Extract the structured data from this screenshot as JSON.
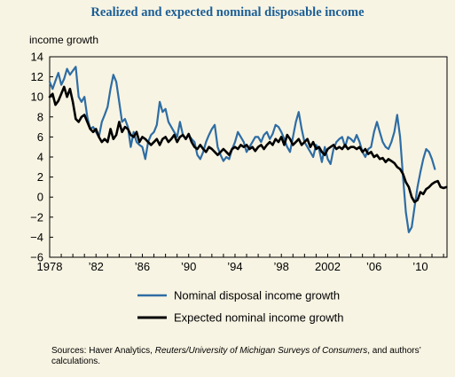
{
  "chart_data": {
    "type": "line",
    "title": "Realized and expected nominal disposable income",
    "ylabel": "income growth",
    "xlabel": "",
    "ylim": [
      -6,
      14
    ],
    "yticks": [
      -6,
      -4,
      -2,
      0,
      2,
      4,
      6,
      8,
      10,
      12,
      14
    ],
    "ytick_labels": [
      "−6",
      "−4",
      "−2",
      "0",
      "2",
      "4",
      "6",
      "8",
      "10",
      "12",
      "14"
    ],
    "xlim": [
      1978,
      2012.3
    ],
    "xticks": [
      1978,
      1982,
      1986,
      1990,
      1994,
      1998,
      2002,
      2006,
      2010
    ],
    "xtick_labels": [
      "1978",
      "’82",
      "’86",
      "’90",
      "’94",
      "’98",
      "2002",
      "’06",
      "’10"
    ],
    "grid": false,
    "legend_position": "bottom",
    "series": [
      {
        "name": "Nominal disposal income growth",
        "color": "#2e6da4",
        "points": [
          [
            1978.0,
            11.5
          ],
          [
            1978.25,
            10.8
          ],
          [
            1978.5,
            11.6
          ],
          [
            1978.75,
            12.4
          ],
          [
            1979.0,
            11.2
          ],
          [
            1979.25,
            11.8
          ],
          [
            1979.5,
            12.8
          ],
          [
            1979.75,
            12.2
          ],
          [
            1980.0,
            12.6
          ],
          [
            1980.25,
            13.0
          ],
          [
            1980.5,
            10.0
          ],
          [
            1980.75,
            9.5
          ],
          [
            1981.0,
            10.0
          ],
          [
            1981.25,
            8.0
          ],
          [
            1981.5,
            6.8
          ],
          [
            1981.75,
            7.0
          ],
          [
            1982.0,
            6.5
          ],
          [
            1982.25,
            6.0
          ],
          [
            1982.5,
            7.5
          ],
          [
            1982.75,
            8.2
          ],
          [
            1983.0,
            9.0
          ],
          [
            1983.25,
            10.8
          ],
          [
            1983.5,
            12.2
          ],
          [
            1983.75,
            11.5
          ],
          [
            1984.0,
            9.5
          ],
          [
            1984.25,
            7.5
          ],
          [
            1984.5,
            7.8
          ],
          [
            1984.75,
            7.0
          ],
          [
            1985.0,
            5.0
          ],
          [
            1985.25,
            6.5
          ],
          [
            1985.5,
            5.5
          ],
          [
            1985.75,
            5.2
          ],
          [
            1986.0,
            5.0
          ],
          [
            1986.25,
            3.8
          ],
          [
            1986.5,
            5.5
          ],
          [
            1986.75,
            6.2
          ],
          [
            1987.0,
            6.5
          ],
          [
            1987.25,
            7.2
          ],
          [
            1987.5,
            9.5
          ],
          [
            1987.75,
            8.5
          ],
          [
            1988.0,
            8.8
          ],
          [
            1988.25,
            7.5
          ],
          [
            1988.5,
            7.0
          ],
          [
            1988.75,
            6.5
          ],
          [
            1989.0,
            6.0
          ],
          [
            1989.25,
            7.5
          ],
          [
            1989.5,
            6.2
          ],
          [
            1989.75,
            5.8
          ],
          [
            1990.0,
            6.2
          ],
          [
            1990.25,
            5.8
          ],
          [
            1990.5,
            5.5
          ],
          [
            1990.75,
            4.2
          ],
          [
            1991.0,
            3.8
          ],
          [
            1991.25,
            4.5
          ],
          [
            1991.5,
            5.5
          ],
          [
            1991.75,
            6.2
          ],
          [
            1992.0,
            6.8
          ],
          [
            1992.25,
            7.2
          ],
          [
            1992.5,
            5.0
          ],
          [
            1992.75,
            4.2
          ],
          [
            1993.0,
            3.6
          ],
          [
            1993.25,
            4.0
          ],
          [
            1993.5,
            3.8
          ],
          [
            1993.75,
            4.8
          ],
          [
            1994.0,
            5.5
          ],
          [
            1994.25,
            6.5
          ],
          [
            1994.5,
            6.0
          ],
          [
            1994.75,
            5.5
          ],
          [
            1995.0,
            4.5
          ],
          [
            1995.25,
            5.0
          ],
          [
            1995.5,
            5.5
          ],
          [
            1995.75,
            6.0
          ],
          [
            1996.0,
            6.0
          ],
          [
            1996.25,
            5.5
          ],
          [
            1996.5,
            6.2
          ],
          [
            1996.75,
            6.5
          ],
          [
            1997.0,
            5.8
          ],
          [
            1997.25,
            6.3
          ],
          [
            1997.5,
            7.2
          ],
          [
            1997.75,
            7.0
          ],
          [
            1998.0,
            6.5
          ],
          [
            1998.25,
            5.8
          ],
          [
            1998.5,
            5.0
          ],
          [
            1998.75,
            4.5
          ],
          [
            1999.0,
            6.0
          ],
          [
            1999.25,
            7.5
          ],
          [
            1999.5,
            8.5
          ],
          [
            1999.75,
            6.8
          ],
          [
            2000.0,
            5.5
          ],
          [
            2000.25,
            5.0
          ],
          [
            2000.5,
            4.5
          ],
          [
            2000.75,
            4.0
          ],
          [
            2001.0,
            5.2
          ],
          [
            2001.25,
            4.8
          ],
          [
            2001.5,
            3.5
          ],
          [
            2001.75,
            5.0
          ],
          [
            2002.0,
            3.8
          ],
          [
            2002.25,
            3.3
          ],
          [
            2002.5,
            4.8
          ],
          [
            2002.75,
            5.5
          ],
          [
            2003.0,
            5.8
          ],
          [
            2003.25,
            6.0
          ],
          [
            2003.5,
            5.0
          ],
          [
            2003.75,
            6.0
          ],
          [
            2004.0,
            5.8
          ],
          [
            2004.25,
            5.5
          ],
          [
            2004.5,
            6.2
          ],
          [
            2004.75,
            5.5
          ],
          [
            2005.0,
            4.5
          ],
          [
            2005.25,
            4.0
          ],
          [
            2005.5,
            4.8
          ],
          [
            2005.75,
            5.0
          ],
          [
            2006.0,
            6.5
          ],
          [
            2006.25,
            7.5
          ],
          [
            2006.5,
            6.5
          ],
          [
            2006.75,
            5.5
          ],
          [
            2007.0,
            5.0
          ],
          [
            2007.25,
            4.8
          ],
          [
            2007.5,
            5.5
          ],
          [
            2007.75,
            6.5
          ],
          [
            2008.0,
            8.2
          ],
          [
            2008.25,
            6.0
          ],
          [
            2008.5,
            2.0
          ],
          [
            2008.75,
            -1.5
          ],
          [
            2009.0,
            -3.5
          ],
          [
            2009.25,
            -3.0
          ],
          [
            2009.5,
            -1.0
          ],
          [
            2009.75,
            1.0
          ],
          [
            2010.0,
            2.5
          ],
          [
            2010.25,
            3.8
          ],
          [
            2010.5,
            4.8
          ],
          [
            2010.75,
            4.5
          ],
          [
            2011.0,
            3.8
          ],
          [
            2011.25,
            2.8
          ]
        ]
      },
      {
        "name": "Expected nominal income growth",
        "color": "#000000",
        "points": [
          [
            1978.0,
            10.0
          ],
          [
            1978.25,
            10.3
          ],
          [
            1978.5,
            9.2
          ],
          [
            1978.75,
            9.6
          ],
          [
            1979.0,
            10.3
          ],
          [
            1979.25,
            11.0
          ],
          [
            1979.5,
            10.0
          ],
          [
            1979.75,
            10.8
          ],
          [
            1980.0,
            9.5
          ],
          [
            1980.25,
            7.8
          ],
          [
            1980.5,
            7.5
          ],
          [
            1980.75,
            8.0
          ],
          [
            1981.0,
            8.2
          ],
          [
            1981.25,
            7.5
          ],
          [
            1981.5,
            6.8
          ],
          [
            1981.75,
            6.5
          ],
          [
            1982.0,
            6.8
          ],
          [
            1982.25,
            6.0
          ],
          [
            1982.5,
            5.5
          ],
          [
            1982.75,
            5.8
          ],
          [
            1983.0,
            5.5
          ],
          [
            1983.25,
            6.8
          ],
          [
            1983.5,
            5.8
          ],
          [
            1983.75,
            6.2
          ],
          [
            1984.0,
            7.5
          ],
          [
            1984.25,
            6.5
          ],
          [
            1984.5,
            7.0
          ],
          [
            1984.75,
            6.8
          ],
          [
            1985.0,
            6.2
          ],
          [
            1985.25,
            6.0
          ],
          [
            1985.5,
            6.5
          ],
          [
            1985.75,
            5.5
          ],
          [
            1986.0,
            6.0
          ],
          [
            1986.25,
            5.8
          ],
          [
            1986.5,
            5.5
          ],
          [
            1986.75,
            5.2
          ],
          [
            1987.0,
            5.5
          ],
          [
            1987.25,
            5.8
          ],
          [
            1987.5,
            5.2
          ],
          [
            1987.75,
            5.8
          ],
          [
            1988.0,
            6.0
          ],
          [
            1988.25,
            5.5
          ],
          [
            1988.5,
            5.8
          ],
          [
            1988.75,
            6.2
          ],
          [
            1989.0,
            5.5
          ],
          [
            1989.25,
            6.0
          ],
          [
            1989.5,
            6.2
          ],
          [
            1989.75,
            5.8
          ],
          [
            1990.0,
            6.3
          ],
          [
            1990.25,
            5.5
          ],
          [
            1990.5,
            5.0
          ],
          [
            1990.75,
            4.8
          ],
          [
            1991.0,
            5.2
          ],
          [
            1991.25,
            4.8
          ],
          [
            1991.5,
            4.5
          ],
          [
            1991.75,
            5.0
          ],
          [
            1992.0,
            4.8
          ],
          [
            1992.25,
            4.5
          ],
          [
            1992.5,
            4.2
          ],
          [
            1992.75,
            4.5
          ],
          [
            1993.0,
            4.8
          ],
          [
            1993.25,
            4.5
          ],
          [
            1993.5,
            4.2
          ],
          [
            1993.75,
            4.8
          ],
          [
            1994.0,
            5.0
          ],
          [
            1994.25,
            4.8
          ],
          [
            1994.5,
            5.2
          ],
          [
            1994.75,
            5.0
          ],
          [
            1995.0,
            5.2
          ],
          [
            1995.25,
            4.8
          ],
          [
            1995.5,
            5.0
          ],
          [
            1995.75,
            4.6
          ],
          [
            1996.0,
            5.0
          ],
          [
            1996.25,
            5.2
          ],
          [
            1996.5,
            4.8
          ],
          [
            1996.75,
            5.2
          ],
          [
            1997.0,
            5.5
          ],
          [
            1997.25,
            5.2
          ],
          [
            1997.5,
            5.8
          ],
          [
            1997.75,
            5.5
          ],
          [
            1998.0,
            6.0
          ],
          [
            1998.25,
            5.2
          ],
          [
            1998.5,
            6.2
          ],
          [
            1998.75,
            5.8
          ],
          [
            1999.0,
            5.2
          ],
          [
            1999.25,
            5.5
          ],
          [
            1999.5,
            5.8
          ],
          [
            1999.75,
            5.2
          ],
          [
            2000.0,
            5.5
          ],
          [
            2000.25,
            5.8
          ],
          [
            2000.5,
            5.0
          ],
          [
            2000.75,
            5.5
          ],
          [
            2001.0,
            4.8
          ],
          [
            2001.25,
            5.0
          ],
          [
            2001.5,
            4.5
          ],
          [
            2001.75,
            4.2
          ],
          [
            2002.0,
            4.8
          ],
          [
            2002.25,
            5.0
          ],
          [
            2002.5,
            5.2
          ],
          [
            2002.75,
            4.8
          ],
          [
            2003.0,
            5.0
          ],
          [
            2003.25,
            4.8
          ],
          [
            2003.5,
            5.2
          ],
          [
            2003.75,
            4.8
          ],
          [
            2004.0,
            5.0
          ],
          [
            2004.25,
            5.0
          ],
          [
            2004.5,
            4.8
          ],
          [
            2004.75,
            5.0
          ],
          [
            2005.0,
            4.5
          ],
          [
            2005.25,
            4.8
          ],
          [
            2005.5,
            4.3
          ],
          [
            2005.75,
            4.5
          ],
          [
            2006.0,
            4.0
          ],
          [
            2006.25,
            4.2
          ],
          [
            2006.5,
            3.8
          ],
          [
            2006.75,
            3.9
          ],
          [
            2007.0,
            3.5
          ],
          [
            2007.25,
            3.8
          ],
          [
            2007.5,
            3.6
          ],
          [
            2007.75,
            3.4
          ],
          [
            2008.0,
            3.0
          ],
          [
            2008.25,
            2.8
          ],
          [
            2008.5,
            2.3
          ],
          [
            2008.75,
            1.5
          ],
          [
            2009.0,
            1.0
          ],
          [
            2009.25,
            0.0
          ],
          [
            2009.5,
            -0.5
          ],
          [
            2009.75,
            -0.3
          ],
          [
            2010.0,
            0.5
          ],
          [
            2010.25,
            0.3
          ],
          [
            2010.5,
            0.8
          ],
          [
            2010.75,
            1.0
          ],
          [
            2011.0,
            1.3
          ],
          [
            2011.25,
            1.5
          ],
          [
            2011.5,
            1.6
          ],
          [
            2011.75,
            1.0
          ],
          [
            2012.0,
            0.9
          ],
          [
            2012.25,
            1.0
          ]
        ]
      }
    ]
  },
  "source": {
    "prefix": "Sources: Haver Analytics, ",
    "italic": "Reuters/University of Michigan Surveys of Consumers",
    "suffix": ", and authors’ calculations."
  }
}
